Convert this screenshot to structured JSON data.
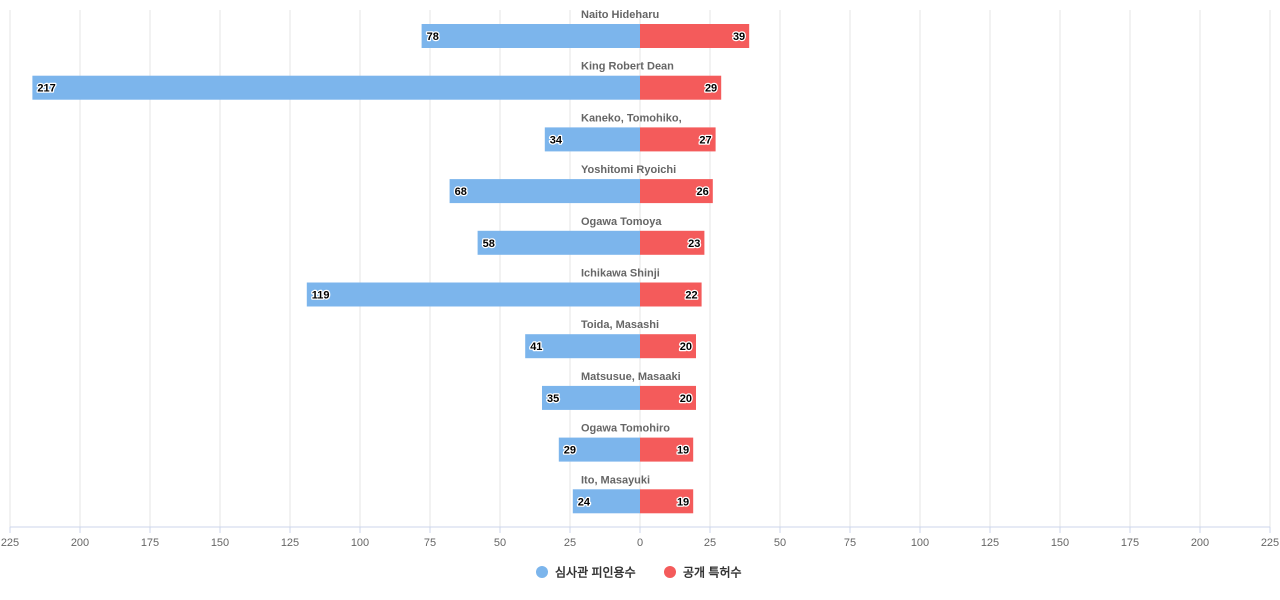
{
  "chart_data": {
    "type": "bar",
    "orientation": "horizontal-diverging",
    "categories": [
      "Naito Hideharu",
      "King Robert Dean",
      "Kaneko, Tomohiko,",
      "Yoshitomi Ryoichi",
      "Ogawa Tomoya",
      "Ichikawa Shinji",
      "Toida, Masashi",
      "Matsusue, Masaaki",
      "Ogawa Tomohiro",
      "Ito, Masayuki"
    ],
    "series": [
      {
        "name": "심사관 피인용수",
        "color": "#7cb5ec",
        "side": "left",
        "values": [
          78,
          217,
          34,
          68,
          58,
          119,
          41,
          35,
          29,
          24
        ]
      },
      {
        "name": "공개 특허수",
        "color": "#f45b5b",
        "side": "right",
        "values": [
          39,
          29,
          27,
          26,
          23,
          22,
          20,
          20,
          19,
          19
        ]
      }
    ],
    "xlim": [
      -225,
      225
    ],
    "ticks": [
      -225,
      -200,
      -175,
      -150,
      -125,
      -100,
      -75,
      -50,
      -25,
      0,
      25,
      50,
      75,
      100,
      125,
      150,
      175,
      200,
      225
    ],
    "tick_labels": [
      "225",
      "200",
      "175",
      "150",
      "125",
      "100",
      "75",
      "50",
      "25",
      "0",
      "25",
      "50",
      "75",
      "100",
      "125",
      "150",
      "175",
      "200",
      "225"
    ],
    "grid": true,
    "legend_position": "bottom-center",
    "title": "",
    "xlabel": "",
    "ylabel": ""
  }
}
